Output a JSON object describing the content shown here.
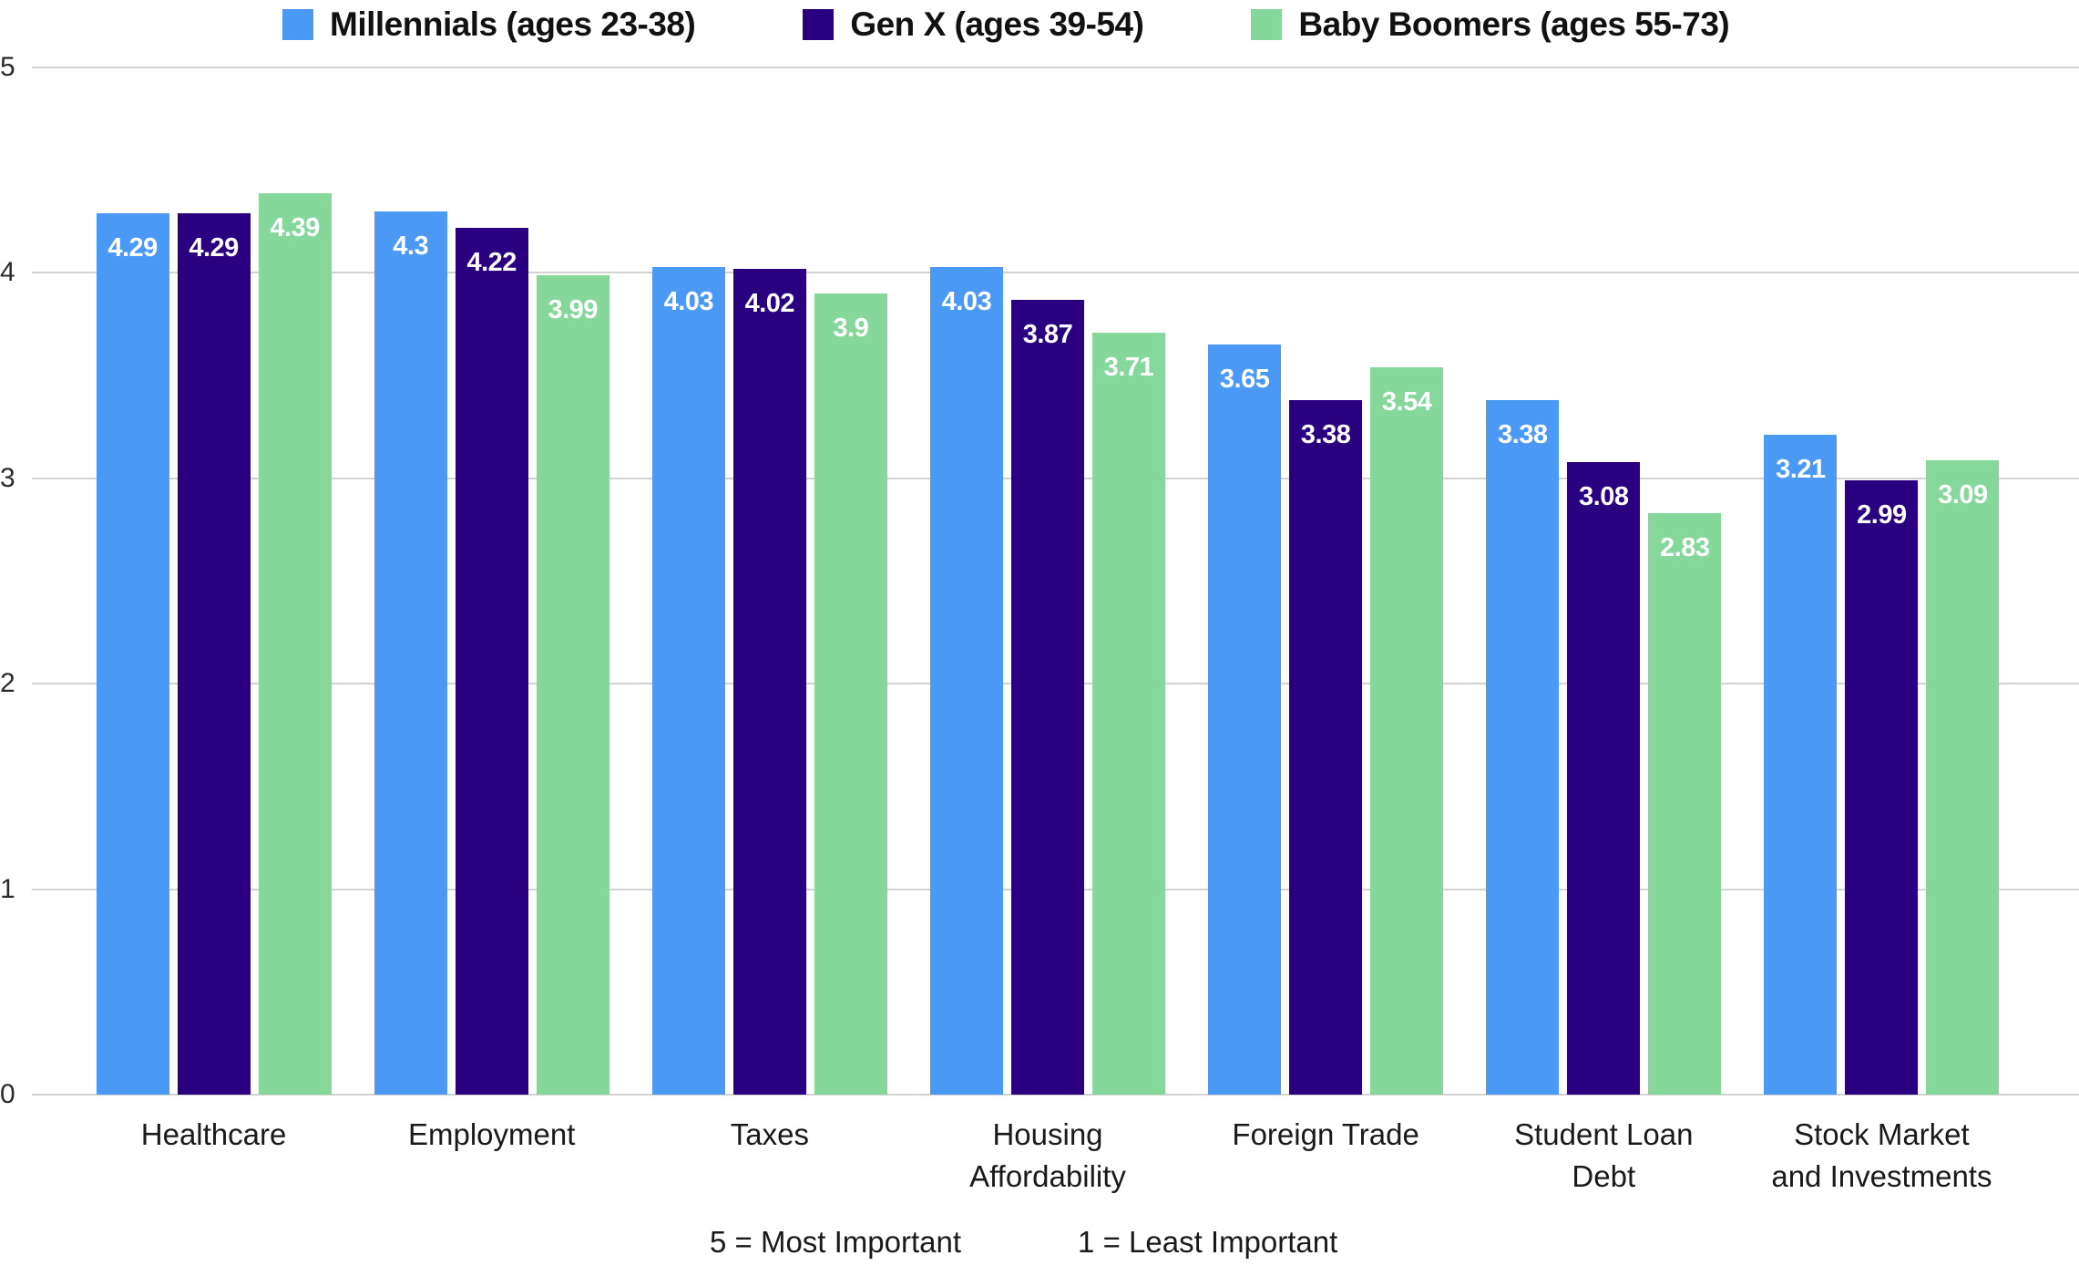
{
  "chart_data": {
    "type": "bar",
    "title": "",
    "categories": [
      "Healthcare",
      "Employment",
      "Taxes",
      "Housing Affordability",
      "Foreign Trade",
      "Student Loan Debt",
      "Stock Market and Investments"
    ],
    "category_display_lines": [
      [
        "Healthcare"
      ],
      [
        "Employment"
      ],
      [
        "Taxes"
      ],
      [
        "Housing",
        "Affordability"
      ],
      [
        "Foreign Trade"
      ],
      [
        "Student Loan",
        "Debt"
      ],
      [
        "Stock Market",
        "and Investments"
      ]
    ],
    "series": [
      {
        "name": "Millennials (ages 23-38)",
        "color": "#4A99F5",
        "values": [
          4.29,
          4.3,
          4.03,
          4.03,
          3.65,
          3.38,
          3.21
        ]
      },
      {
        "name": "Gen X (ages 39-54)",
        "color": "#2A0080",
        "values": [
          4.29,
          4.22,
          4.02,
          3.87,
          3.38,
          3.08,
          2.99
        ]
      },
      {
        "name": "Baby Boomers (ages 55-73)",
        "color": "#85D89A",
        "values": [
          4.39,
          3.99,
          3.9,
          3.71,
          3.54,
          2.83,
          3.09
        ]
      }
    ],
    "ylim": [
      0,
      5
    ],
    "yticks": [
      0,
      1,
      2,
      3,
      4,
      5
    ],
    "grid": true,
    "legend_position": "top",
    "value_labels": "inside-top",
    "notes": [
      "5 = Most Important",
      "1 = Least Important"
    ],
    "colors": {
      "gridline": "#d2d2d2",
      "value_label": "#ffffff",
      "axis_text": "#2b2b2b"
    }
  }
}
